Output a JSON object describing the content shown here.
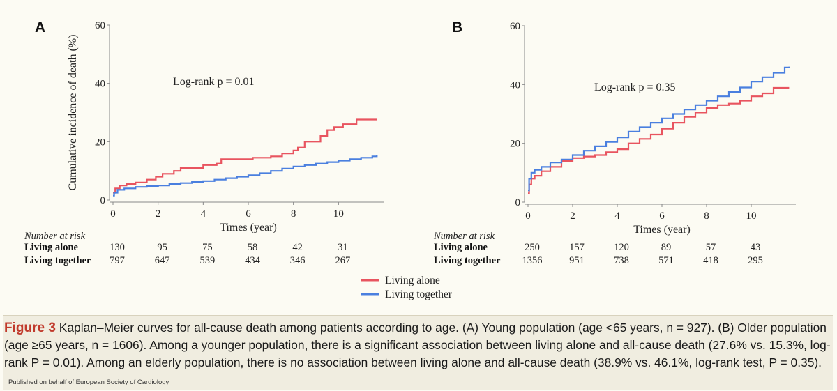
{
  "chart_data": [
    {
      "panel": "A",
      "type": "line",
      "annotation": "Log-rank p = 0.01",
      "ylabel": "Cumulative incidence of death (%)",
      "xlabel": "Times (year)",
      "ylim": [
        0,
        60
      ],
      "xlim": [
        0,
        12
      ],
      "y_ticks": [
        0,
        20,
        40,
        60
      ],
      "x_ticks": [
        0,
        2,
        4,
        6,
        8,
        10
      ],
      "series": [
        {
          "name": "Living alone",
          "color": "#e8545f",
          "x": [
            0,
            0.1,
            0.3,
            0.6,
            1.0,
            1.5,
            1.9,
            2.2,
            2.7,
            3.0,
            3.5,
            4.0,
            4.6,
            4.8,
            5.5,
            6.2,
            7.0,
            7.5,
            8.0,
            8.2,
            8.5,
            8.8,
            9.2,
            9.5,
            9.8,
            10.2,
            10.5,
            10.8,
            11.7
          ],
          "y": [
            2.5,
            4,
            5,
            5.5,
            6,
            7,
            8,
            9,
            10,
            11,
            11,
            12,
            12.5,
            14,
            14,
            14.5,
            15,
            16,
            17,
            18,
            20,
            20,
            22,
            24,
            25,
            26,
            26,
            27.6,
            27.6
          ]
        },
        {
          "name": "Living together",
          "color": "#4a7fdf",
          "x": [
            0,
            0.05,
            0.2,
            0.5,
            1.0,
            1.5,
            2.0,
            2.5,
            3.0,
            3.5,
            4.0,
            4.5,
            5.0,
            5.5,
            6.0,
            6.5,
            7.0,
            7.5,
            8.0,
            8.5,
            9.0,
            9.5,
            10.0,
            10.5,
            11.0,
            11.5,
            11.7
          ],
          "y": [
            1.5,
            2.5,
            3.5,
            4,
            4.5,
            4.8,
            5,
            5.5,
            5.8,
            6.2,
            6.5,
            7,
            7.5,
            8,
            8.5,
            9.2,
            10,
            10.8,
            11.5,
            12,
            12.5,
            13,
            13.5,
            14,
            14.5,
            15,
            15.3
          ]
        }
      ],
      "risk_table": {
        "title": "Number at risk",
        "rows": [
          {
            "label": "Living alone",
            "values": [
              "130",
              "95",
              "75",
              "58",
              "42",
              "31"
            ]
          },
          {
            "label": "Living together",
            "values": [
              "797",
              "647",
              "539",
              "434",
              "346",
              "267"
            ]
          }
        ]
      }
    },
    {
      "panel": "B",
      "type": "line",
      "annotation": "Log-rank p = 0.35",
      "ylabel": "",
      "xlabel": "Times (year)",
      "ylim": [
        0,
        60
      ],
      "xlim": [
        0,
        12
      ],
      "y_ticks": [
        0,
        20,
        40,
        60
      ],
      "x_ticks": [
        0,
        2,
        4,
        6,
        8,
        10
      ],
      "series": [
        {
          "name": "Living alone",
          "color": "#e8545f",
          "x": [
            0,
            0.05,
            0.15,
            0.3,
            0.6,
            1.0,
            1.5,
            2.0,
            2.5,
            3.0,
            3.5,
            4.0,
            4.5,
            5.0,
            5.5,
            6.0,
            6.5,
            7.0,
            7.5,
            8.0,
            8.5,
            9.0,
            9.5,
            10.0,
            10.5,
            11.0,
            11.7
          ],
          "y": [
            3,
            6,
            8,
            9,
            10.5,
            12,
            14,
            15,
            15.5,
            16,
            17,
            18,
            20,
            21.5,
            23,
            25,
            27,
            29,
            30.5,
            32,
            33,
            33.5,
            34.5,
            36,
            37,
            38.9,
            38.9
          ]
        },
        {
          "name": "Living together",
          "color": "#4a7fdf",
          "x": [
            0,
            0.05,
            0.15,
            0.3,
            0.6,
            1.0,
            1.5,
            2.0,
            2.5,
            3.0,
            3.5,
            4.0,
            4.5,
            5.0,
            5.5,
            6.0,
            6.5,
            7.0,
            7.5,
            8.0,
            8.5,
            9.0,
            9.5,
            10.0,
            10.5,
            11.0,
            11.5,
            11.7
          ],
          "y": [
            4,
            8,
            10,
            11,
            12,
            13.5,
            14.5,
            16,
            17.5,
            19,
            20.5,
            22,
            24,
            25.5,
            27,
            28.5,
            30,
            31.5,
            33,
            34.5,
            36,
            37.5,
            39,
            41,
            42.5,
            44,
            45.8,
            46.1
          ]
        }
      ],
      "risk_table": {
        "title": "Number at risk",
        "rows": [
          {
            "label": "Living alone",
            "values": [
              "250",
              "157",
              "120",
              "89",
              "57",
              "43"
            ]
          },
          {
            "label": "Living together",
            "values": [
              "1356",
              "951",
              "738",
              "571",
              "418",
              "295"
            ]
          }
        ]
      }
    }
  ],
  "legend": {
    "items": [
      {
        "label": "Living alone",
        "color": "#e8545f"
      },
      {
        "label": "Living together",
        "color": "#4a7fdf"
      }
    ]
  },
  "caption": {
    "label": "Figure 3",
    "text": "Kaplan–Meier curves for all-cause death among patients according to age. (A) Young population (age <65 years, n = 927). (B) Older population (age ≥65 years, n = 1606). Among a younger population, there is a significant association between living alone and all-cause death (27.6% vs. 15.3%, log-rank P = 0.01). Among an elderly population, there is no association between living alone and all-cause death (38.9% vs. 46.1%, log-rank test, P = 0.35).",
    "publisher": "Published on behalf of European Society of Cardiology"
  }
}
